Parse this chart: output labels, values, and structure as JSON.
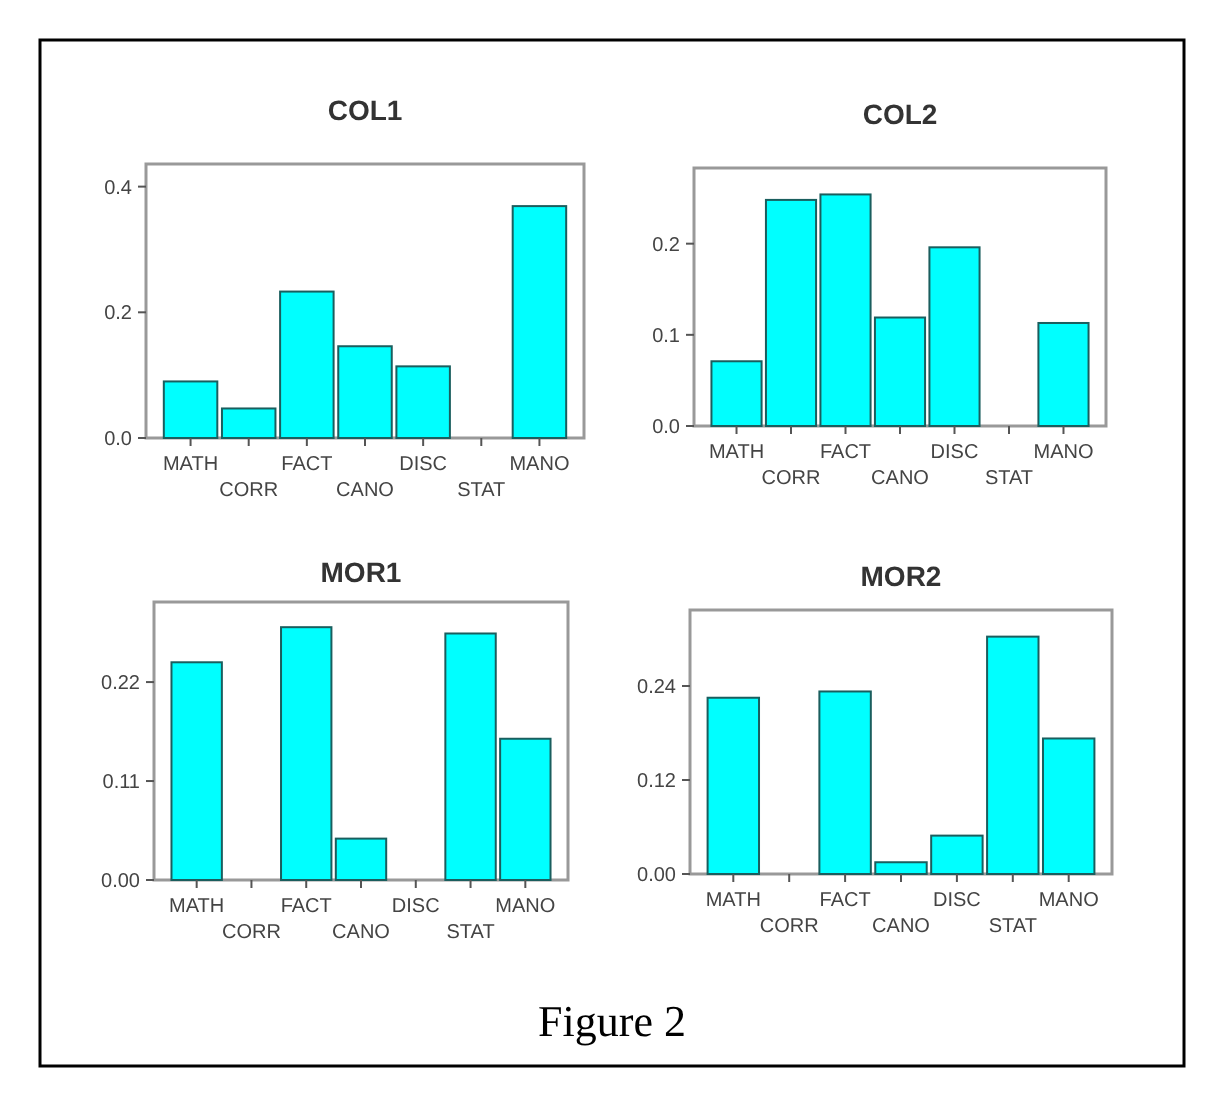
{
  "chart_data": [
    {
      "type": "bar",
      "title": "COL1",
      "categories": [
        "MATH",
        "CORR",
        "FACT",
        "CANO",
        "DISC",
        "STAT",
        "MANO"
      ],
      "values": [
        0.09,
        0.047,
        0.233,
        0.146,
        0.114,
        null,
        0.369
      ],
      "color": "#00ffff",
      "ylim": [
        0,
        0.436
      ],
      "yticks": [
        {
          "value": 0,
          "label": "0.0"
        },
        {
          "value": 0.2,
          "label": "0.2"
        },
        {
          "value": 0.4,
          "label": "0.4"
        }
      ],
      "grid": false
    },
    {
      "type": "bar",
      "title": "COL2",
      "categories": [
        "MATH",
        "CORR",
        "FACT",
        "CANO",
        "DISC",
        "STAT",
        "MANO"
      ],
      "values": [
        0.071,
        0.248,
        0.254,
        0.119,
        0.196,
        null,
        0.113
      ],
      "color": "#00ffff",
      "ylim": [
        0,
        0.283
      ],
      "yticks": [
        {
          "value": 0,
          "label": "0.0"
        },
        {
          "value": 0.1,
          "label": "0.1"
        },
        {
          "value": 0.2,
          "label": "0.2"
        }
      ],
      "grid": false
    },
    {
      "type": "bar",
      "title": "MOR1",
      "categories": [
        "MATH",
        "CORR",
        "FACT",
        "CANO",
        "DISC",
        "STAT",
        "MANO"
      ],
      "values": [
        0.242,
        null,
        0.281,
        0.046,
        null,
        0.274,
        0.157
      ],
      "color": "#00ffff",
      "ylim": [
        0,
        0.309
      ],
      "yticks": [
        {
          "value": 0,
          "label": "0.00"
        },
        {
          "value": 0.11,
          "label": "0.11"
        },
        {
          "value": 0.22,
          "label": "0.22"
        }
      ],
      "grid": false
    },
    {
      "type": "bar",
      "title": "MOR2",
      "categories": [
        "MATH",
        "CORR",
        "FACT",
        "CANO",
        "DISC",
        "STAT",
        "MANO"
      ],
      "values": [
        0.225,
        null,
        0.233,
        0.015,
        0.049,
        0.303,
        0.173
      ],
      "color": "#00ffff",
      "ylim": [
        0,
        0.337
      ],
      "yticks": [
        {
          "value": 0,
          "label": "0.00"
        },
        {
          "value": 0.12,
          "label": "0.12"
        },
        {
          "value": 0.24,
          "label": "0.24"
        }
      ],
      "grid": false,
      "annotations": [
        "Figure 2"
      ]
    }
  ]
}
